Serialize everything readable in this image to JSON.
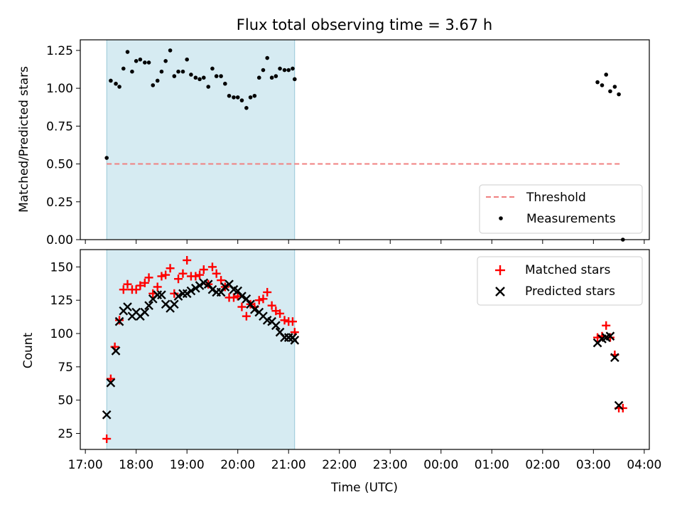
{
  "chart_data": [
    {
      "type": "scatter",
      "panel": "top",
      "title": "Flux total observing time = 3.67 h",
      "xlabel": "",
      "ylabel": "Matched/Predicted stars",
      "xlim_hours": [
        16.9,
        28.1
      ],
      "ylim": [
        0.0,
        1.32
      ],
      "yticks": [
        0.0,
        0.25,
        0.5,
        0.75,
        1.0,
        1.25
      ],
      "ytick_labels": [
        "0.00",
        "0.25",
        "0.50",
        "0.75",
        "1.00",
        "1.25"
      ],
      "shaded_region_hours": [
        17.42,
        21.12
      ],
      "grid": false,
      "legend_position": "lower-right",
      "threshold": {
        "name": "Threshold",
        "value": 0.5,
        "x_start_hours": 17.42,
        "x_end_hours": 27.55,
        "color": "#f08080",
        "style": "dashed"
      },
      "series": [
        {
          "name": "Measurements",
          "color": "#000000",
          "marker": "dot",
          "x_hours": [
            17.42,
            17.5,
            17.6,
            17.67,
            17.75,
            17.83,
            17.92,
            18.0,
            18.08,
            18.17,
            18.25,
            18.33,
            18.42,
            18.5,
            18.58,
            18.67,
            18.75,
            18.83,
            18.92,
            19.0,
            19.08,
            19.17,
            19.25,
            19.33,
            19.42,
            19.5,
            19.58,
            19.67,
            19.75,
            19.83,
            19.92,
            20.0,
            20.08,
            20.17,
            20.25,
            20.33,
            20.42,
            20.5,
            20.58,
            20.67,
            20.75,
            20.83,
            20.92,
            21.0,
            21.08,
            21.12,
            27.08,
            27.17,
            27.25,
            27.33,
            27.42,
            27.5,
            27.58
          ],
          "y": [
            0.54,
            1.05,
            1.03,
            1.01,
            1.13,
            1.24,
            1.11,
            1.18,
            1.19,
            1.17,
            1.17,
            1.02,
            1.05,
            1.11,
            1.18,
            1.25,
            1.08,
            1.11,
            1.11,
            1.19,
            1.09,
            1.07,
            1.06,
            1.07,
            1.01,
            1.13,
            1.08,
            1.08,
            1.03,
            0.95,
            0.94,
            0.94,
            0.92,
            0.87,
            0.94,
            0.95,
            1.07,
            1.12,
            1.2,
            1.07,
            1.08,
            1.13,
            1.12,
            1.12,
            1.13,
            1.06,
            1.04,
            1.02,
            1.09,
            0.98,
            1.01,
            0.96,
            0.0
          ]
        }
      ]
    },
    {
      "type": "scatter",
      "panel": "bottom",
      "title": "",
      "xlabel": "Time (UTC)",
      "ylabel": "Count",
      "xlim_hours": [
        16.9,
        28.1
      ],
      "ylim": [
        13,
        163
      ],
      "yticks": [
        25,
        50,
        75,
        100,
        125,
        150
      ],
      "ytick_labels": [
        "25",
        "50",
        "75",
        "100",
        "125",
        "150"
      ],
      "xticks_hours": [
        17,
        18,
        19,
        20,
        21,
        22,
        23,
        24,
        25,
        26,
        27,
        28
      ],
      "xtick_labels": [
        "17:00",
        "18:00",
        "19:00",
        "20:00",
        "21:00",
        "22:00",
        "23:00",
        "00:00",
        "01:00",
        "02:00",
        "03:00",
        "04:00"
      ],
      "shaded_region_hours": [
        17.42,
        21.12
      ],
      "grid": false,
      "legend_position": "upper-right",
      "series": [
        {
          "name": "Matched stars",
          "color": "#ff0000",
          "marker": "plus",
          "x_hours": [
            17.42,
            17.5,
            17.58,
            17.67,
            17.75,
            17.83,
            17.92,
            18.0,
            18.08,
            18.17,
            18.25,
            18.33,
            18.42,
            18.5,
            18.58,
            18.67,
            18.75,
            18.83,
            18.92,
            19.0,
            19.08,
            19.17,
            19.25,
            19.33,
            19.42,
            19.5,
            19.58,
            19.67,
            19.75,
            19.83,
            19.92,
            20.0,
            20.08,
            20.17,
            20.25,
            20.33,
            20.42,
            20.5,
            20.58,
            20.67,
            20.75,
            20.83,
            20.92,
            21.0,
            21.08,
            21.12,
            27.08,
            27.17,
            27.25,
            27.33,
            27.42,
            27.5,
            27.58
          ],
          "y": [
            21,
            66,
            90,
            110,
            133,
            137,
            133,
            133,
            136,
            138,
            142,
            130,
            135,
            143,
            144,
            149,
            130,
            141,
            145,
            155,
            143,
            143,
            144,
            148,
            137,
            150,
            145,
            140,
            135,
            127,
            127,
            128,
            120,
            113,
            122,
            120,
            125,
            126,
            131,
            121,
            117,
            115,
            110,
            109,
            109,
            101,
            97,
            98,
            106,
            97,
            84,
            44,
            44
          ]
        },
        {
          "name": "Predicted stars",
          "color": "#000000",
          "marker": "x",
          "x_hours": [
            17.42,
            17.5,
            17.6,
            17.67,
            17.75,
            17.83,
            17.92,
            18.0,
            18.08,
            18.17,
            18.25,
            18.33,
            18.42,
            18.5,
            18.58,
            18.67,
            18.75,
            18.83,
            18.92,
            19.0,
            19.08,
            19.17,
            19.25,
            19.33,
            19.42,
            19.5,
            19.58,
            19.67,
            19.75,
            19.83,
            19.92,
            20.0,
            20.08,
            20.17,
            20.25,
            20.33,
            20.42,
            20.5,
            20.58,
            20.67,
            20.75,
            20.83,
            20.92,
            21.0,
            21.08,
            21.12,
            27.08,
            27.17,
            27.25,
            27.33,
            27.42,
            27.5
          ],
          "y": [
            39,
            63,
            87,
            109,
            117,
            120,
            113,
            116,
            113,
            116,
            121,
            126,
            129,
            129,
            122,
            119,
            122,
            128,
            130,
            130,
            132,
            134,
            136,
            138,
            137,
            133,
            131,
            131,
            135,
            137,
            133,
            132,
            128,
            126,
            122,
            118,
            116,
            113,
            110,
            109,
            106,
            101,
            97,
            97,
            97,
            95,
            93,
            96,
            97,
            98,
            82,
            46
          ]
        }
      ]
    }
  ]
}
